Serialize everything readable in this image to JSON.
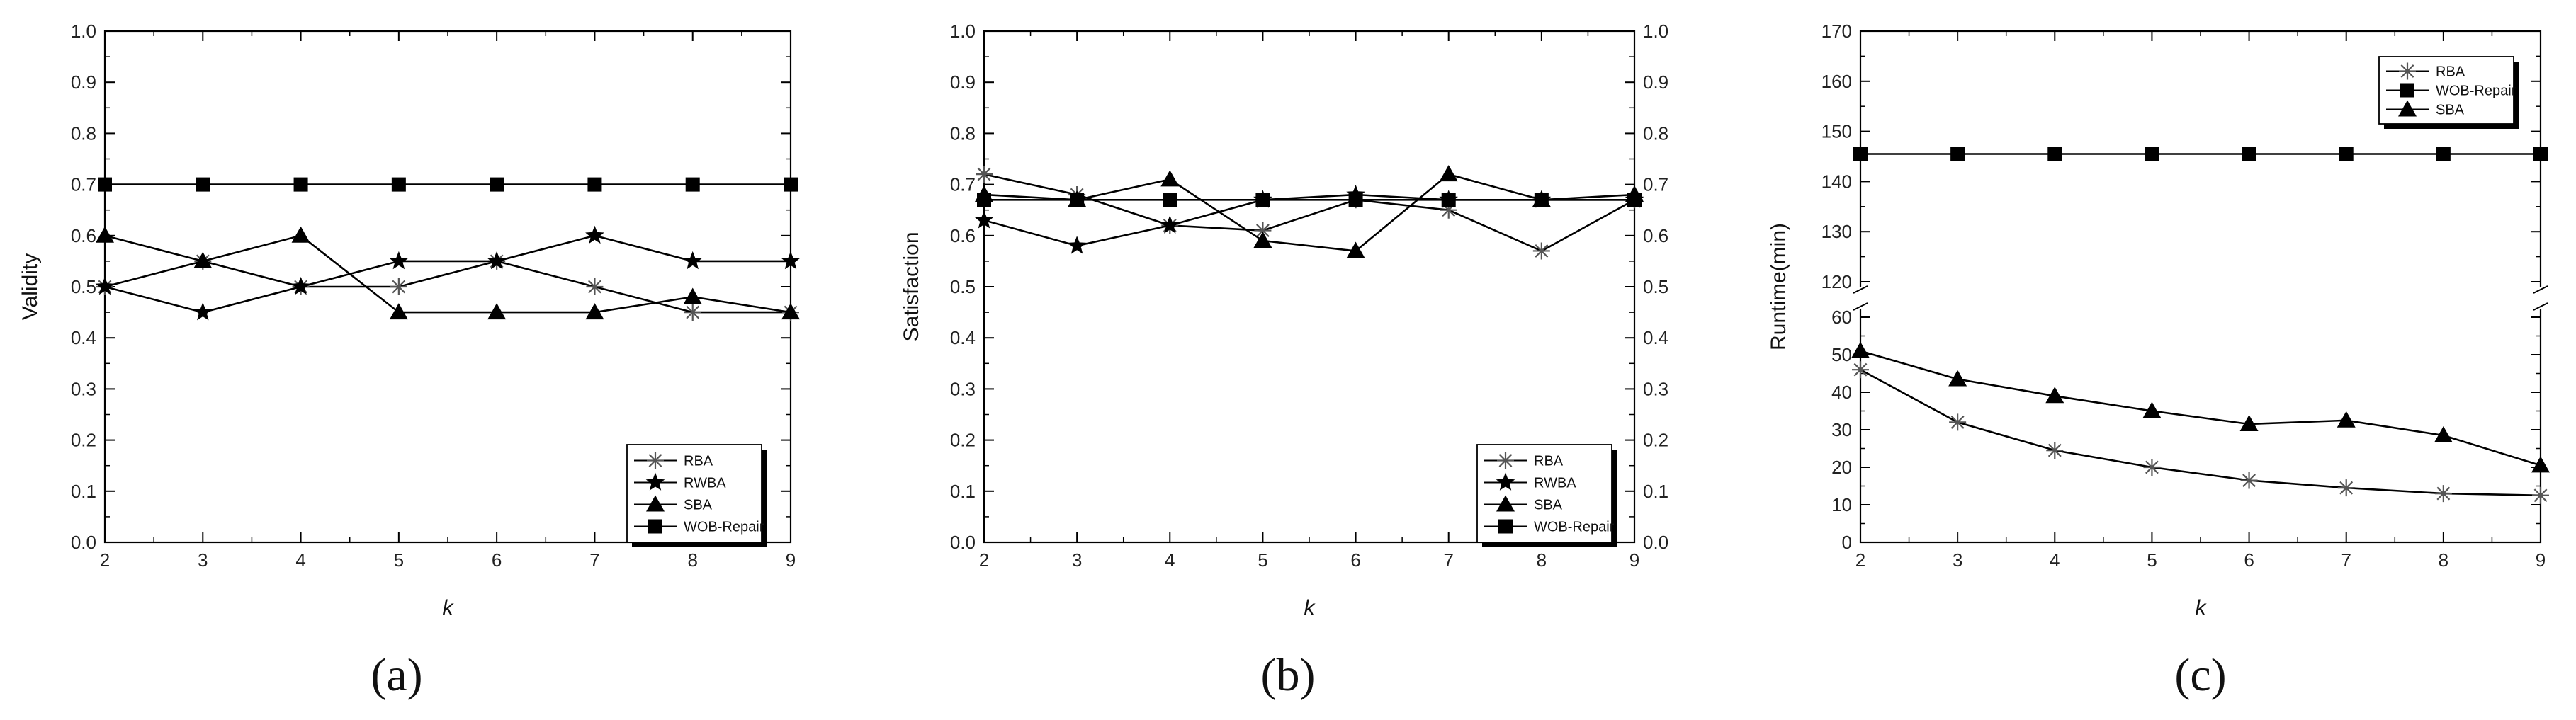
{
  "chart_data": [
    {
      "type": "line",
      "caption": "(a)",
      "xlabel": "k",
      "ylabel": "Validity",
      "x": [
        2,
        3,
        4,
        5,
        6,
        7,
        8,
        9
      ],
      "xlim": [
        2,
        9
      ],
      "ylim": [
        0,
        1.0
      ],
      "yticks": [
        "0.0",
        "0.1",
        "0.2",
        "0.3",
        "0.4",
        "0.5",
        "0.6",
        "0.7",
        "0.8",
        "0.9",
        "1.0"
      ],
      "legend_position": "bottom-right",
      "grid": false,
      "series": [
        {
          "name": "RBA",
          "marker": "asterisk",
          "values": [
            0.5,
            0.55,
            0.5,
            0.5,
            0.55,
            0.5,
            0.45,
            0.45
          ]
        },
        {
          "name": "RWBA",
          "marker": "star",
          "values": [
            0.5,
            0.45,
            0.5,
            0.55,
            0.55,
            0.6,
            0.55,
            0.55
          ]
        },
        {
          "name": "SBA",
          "marker": "triangle",
          "values": [
            0.6,
            0.55,
            0.6,
            0.45,
            0.45,
            0.45,
            0.48,
            0.45
          ]
        },
        {
          "name": "WOB-Repair",
          "marker": "square",
          "values": [
            0.7,
            0.7,
            0.7,
            0.7,
            0.7,
            0.7,
            0.7,
            0.7
          ]
        }
      ]
    },
    {
      "type": "line",
      "caption": "(b)",
      "xlabel": "k",
      "ylabel": "Satisfaction",
      "x": [
        2,
        3,
        4,
        5,
        6,
        7,
        8,
        9
      ],
      "xlim": [
        2,
        9
      ],
      "ylim": [
        0,
        1.0
      ],
      "yticks": [
        "0.0",
        "0.1",
        "0.2",
        "0.3",
        "0.4",
        "0.5",
        "0.6",
        "0.7",
        "0.8",
        "0.9",
        "1.0"
      ],
      "right_axis_mirrored": true,
      "legend_position": "bottom-right",
      "grid": false,
      "series": [
        {
          "name": "RBA",
          "marker": "asterisk",
          "values": [
            0.72,
            0.68,
            0.62,
            0.61,
            0.67,
            0.65,
            0.57,
            0.67
          ]
        },
        {
          "name": "RWBA",
          "marker": "star",
          "values": [
            0.63,
            0.58,
            0.62,
            0.67,
            0.68,
            0.67,
            0.67,
            0.67
          ]
        },
        {
          "name": "SBA",
          "marker": "triangle",
          "values": [
            0.68,
            0.67,
            0.71,
            0.59,
            0.57,
            0.72,
            0.67,
            0.68
          ]
        },
        {
          "name": "WOB-Repair",
          "marker": "square",
          "values": [
            0.67,
            0.67,
            0.67,
            0.67,
            0.67,
            0.67,
            0.67,
            0.67
          ]
        }
      ]
    },
    {
      "type": "line",
      "caption": "(c)",
      "xlabel": "k",
      "ylabel": "Runtime(min)",
      "x": [
        2,
        3,
        4,
        5,
        6,
        7,
        8,
        9
      ],
      "xlim": [
        2,
        9
      ],
      "broken_y_axis": true,
      "ylim_lower": [
        0,
        60
      ],
      "ylim_upper": [
        120,
        170
      ],
      "yticks_lower": [
        "0",
        "10",
        "20",
        "30",
        "40",
        "50",
        "60"
      ],
      "yticks_upper": [
        "120",
        "130",
        "140",
        "150",
        "160",
        "170"
      ],
      "legend_position": "top-right",
      "grid": false,
      "series": [
        {
          "name": "RBA",
          "marker": "asterisk",
          "values": [
            46,
            32,
            24.5,
            20,
            16.5,
            14.5,
            13,
            12.5
          ]
        },
        {
          "name": "WOB-Repair",
          "marker": "square",
          "values": [
            145.5,
            145.5,
            145.5,
            145.5,
            145.5,
            145.5,
            145.5,
            145.5
          ]
        },
        {
          "name": "SBA",
          "marker": "triangle",
          "values": [
            51,
            43.5,
            39,
            35,
            31.5,
            32.5,
            28.5,
            20.5
          ]
        }
      ]
    }
  ]
}
